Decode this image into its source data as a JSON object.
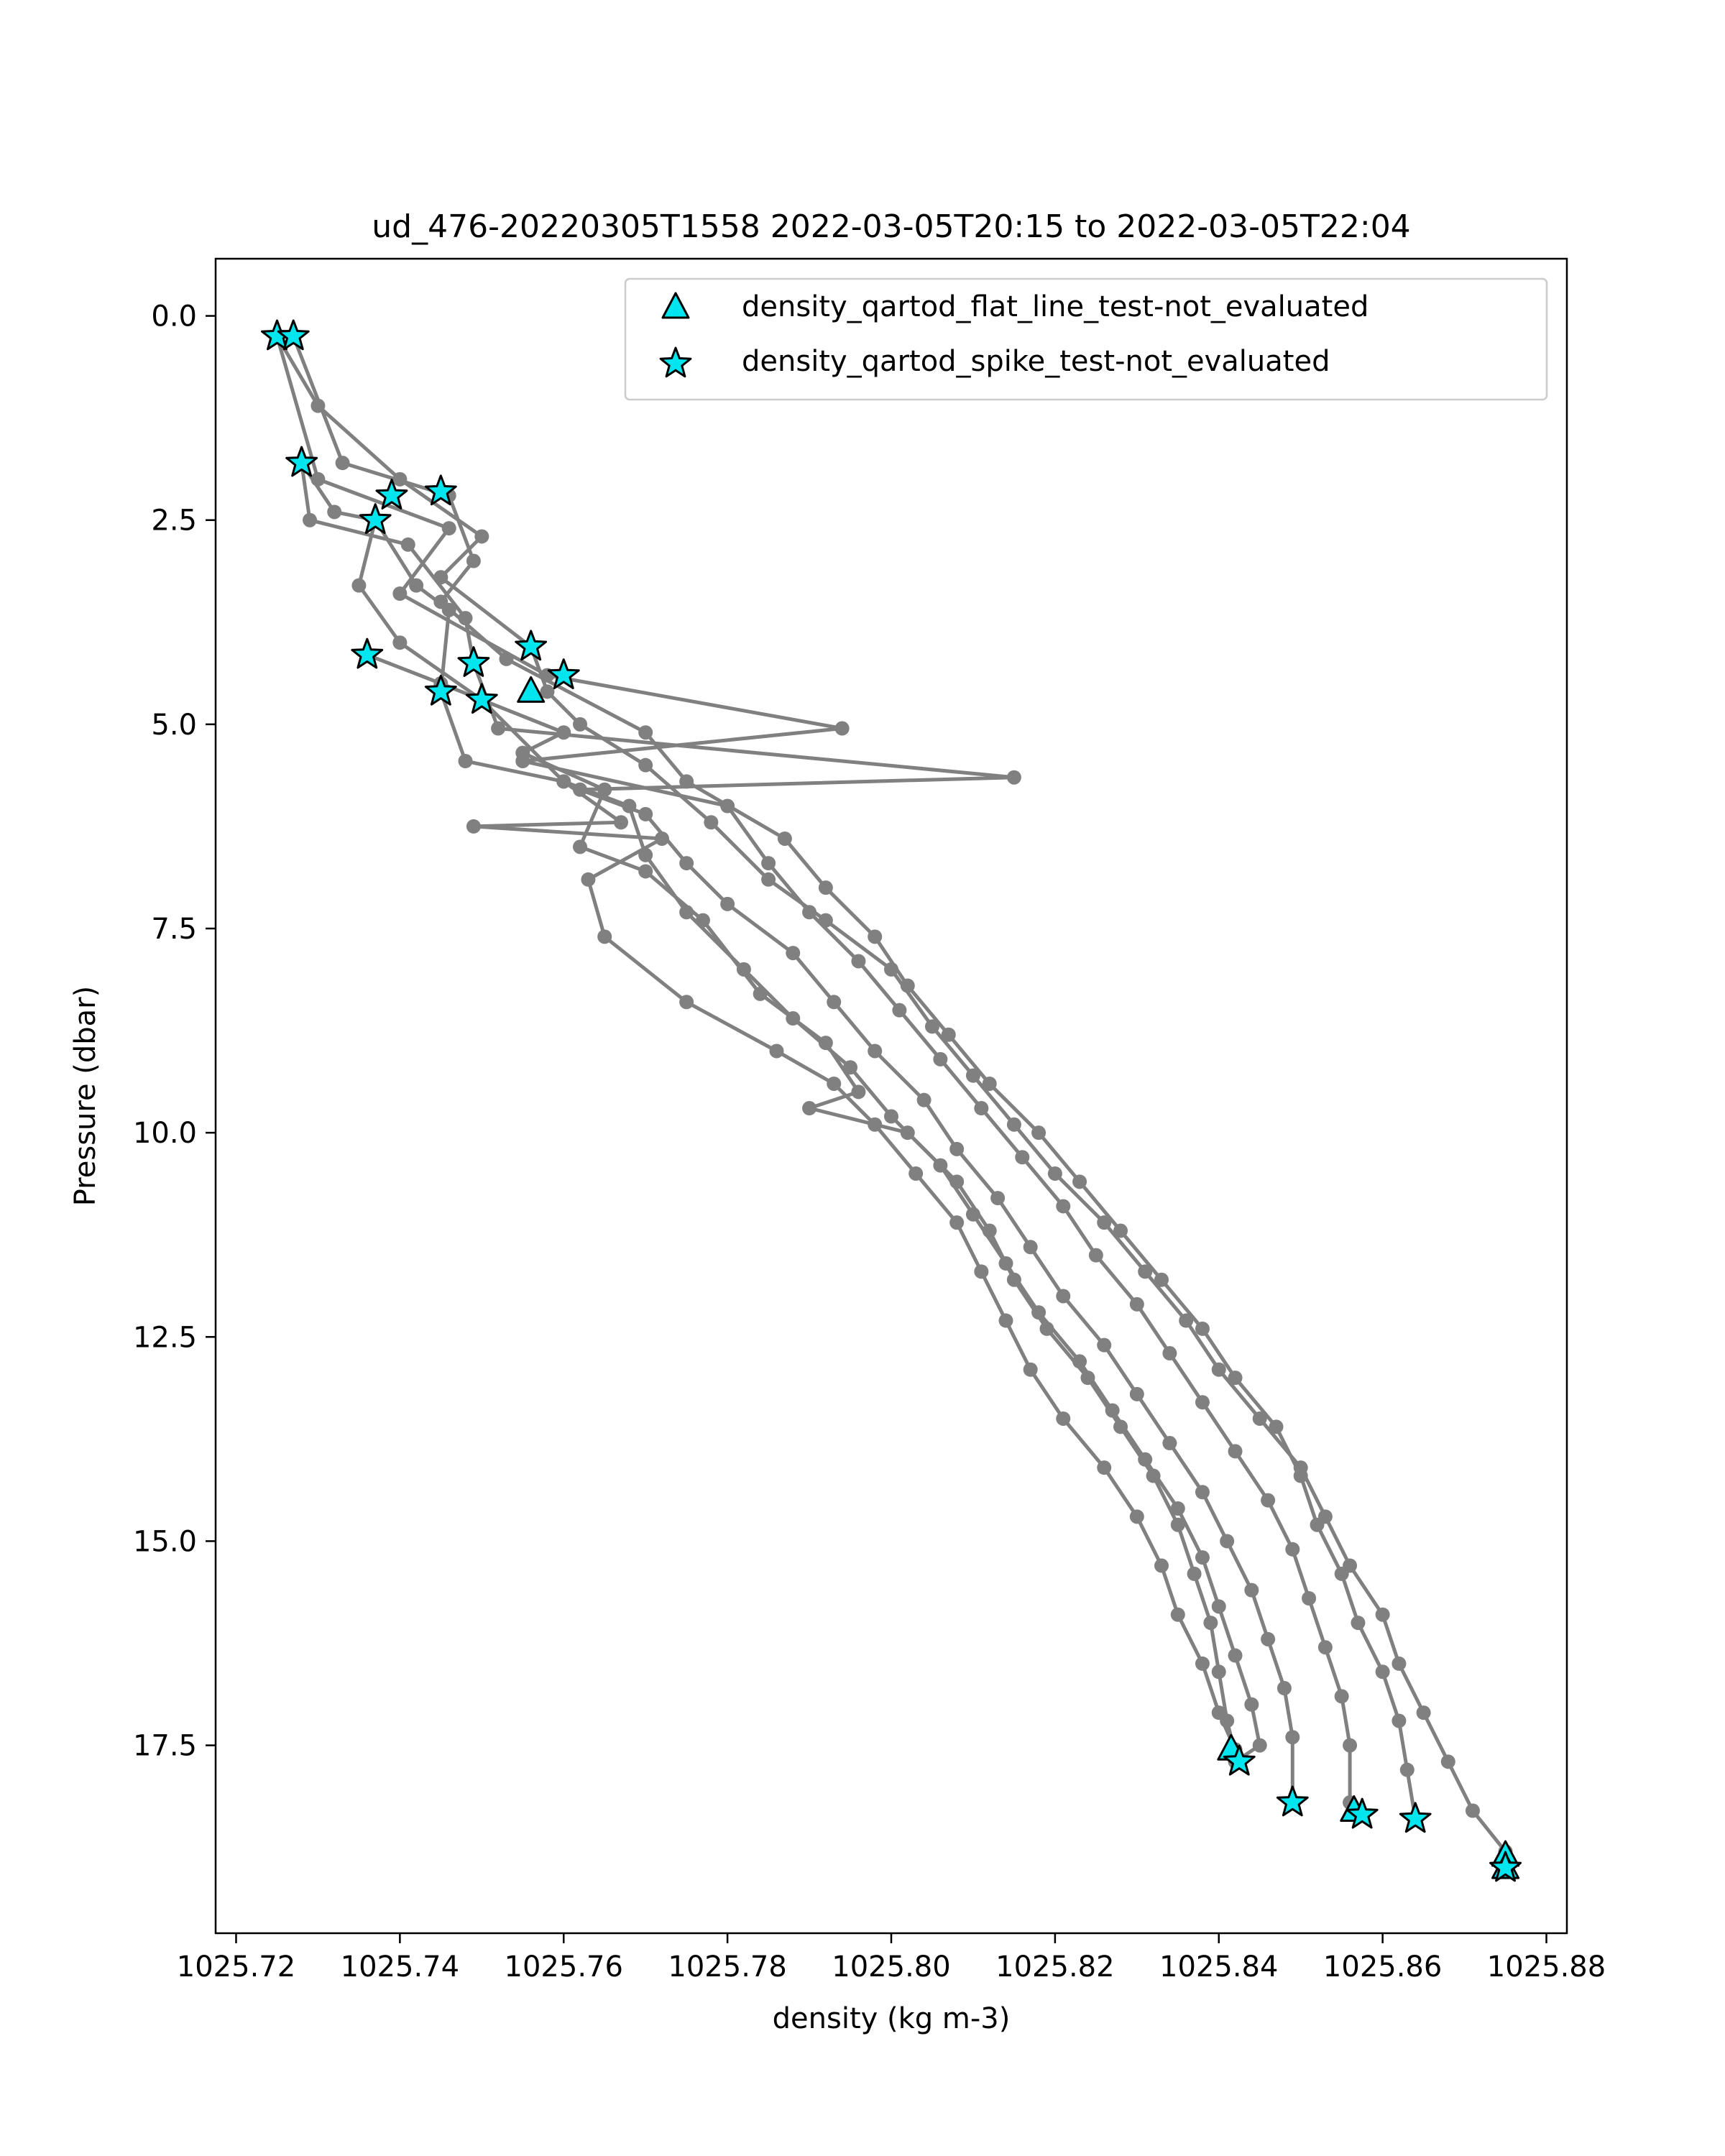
{
  "chart_data": {
    "type": "scatter",
    "title": "ud_476-20220305T1558 2022-03-05T20:15 to 2022-03-05T22:04",
    "xlabel": "density (kg m-3)",
    "ylabel": "Pressure (dbar)",
    "xlim": [
      1025.7175,
      1025.8825
    ],
    "ylim": [
      19.8,
      -0.7
    ],
    "y_inverted": true,
    "grid": false,
    "legend_position": "top-right",
    "xticks": [
      "1025.72",
      "1025.74",
      "1025.76",
      "1025.78",
      "1025.80",
      "1025.82",
      "1025.84",
      "1025.86",
      "1025.88"
    ],
    "xtick_values": [
      1025.72,
      1025.74,
      1025.76,
      1025.78,
      1025.8,
      1025.82,
      1025.84,
      1025.86,
      1025.88
    ],
    "yticks": [
      "0.0",
      "2.5",
      "5.0",
      "7.5",
      "10.0",
      "12.5",
      "15.0",
      "17.5"
    ],
    "ytick_values": [
      0.0,
      2.5,
      5.0,
      7.5,
      10.0,
      12.5,
      15.0,
      17.5
    ],
    "line_color": "#808080",
    "marker_color": "#00e5ee",
    "profiles": [
      {
        "points": [
          [
            1025.725,
            0.25
          ],
          [
            1025.73,
            1.1
          ],
          [
            1025.74,
            2.0
          ],
          [
            1025.75,
            2.7
          ],
          [
            1025.745,
            3.2
          ],
          [
            1025.756,
            4.05
          ],
          [
            1025.758,
            4.6
          ],
          [
            1025.762,
            5.0
          ],
          [
            1025.77,
            5.5
          ],
          [
            1025.778,
            6.2
          ],
          [
            1025.785,
            6.9
          ],
          [
            1025.792,
            7.4
          ],
          [
            1025.8,
            8.0
          ],
          [
            1025.805,
            8.7
          ],
          [
            1025.81,
            9.3
          ],
          [
            1025.815,
            9.9
          ],
          [
            1025.82,
            10.5
          ],
          [
            1025.826,
            11.1
          ],
          [
            1025.831,
            11.7
          ],
          [
            1025.836,
            12.3
          ],
          [
            1025.84,
            12.9
          ],
          [
            1025.845,
            13.5
          ],
          [
            1025.85,
            14.1
          ],
          [
            1025.853,
            14.7
          ],
          [
            1025.856,
            15.3
          ],
          [
            1025.86,
            15.9
          ],
          [
            1025.862,
            16.5
          ],
          [
            1025.865,
            17.1
          ],
          [
            1025.868,
            17.7
          ],
          [
            1025.871,
            18.3
          ],
          [
            1025.875,
            18.8
          ],
          [
            1025.875,
            19.0
          ]
        ]
      },
      {
        "points": [
          [
            1025.727,
            0.25
          ],
          [
            1025.733,
            1.8
          ],
          [
            1025.746,
            2.2
          ],
          [
            1025.749,
            3.0
          ],
          [
            1025.745,
            3.5
          ],
          [
            1025.753,
            4.2
          ],
          [
            1025.77,
            5.1
          ],
          [
            1025.775,
            5.7
          ],
          [
            1025.787,
            6.4
          ],
          [
            1025.792,
            7.0
          ],
          [
            1025.798,
            7.6
          ],
          [
            1025.802,
            8.2
          ],
          [
            1025.807,
            8.8
          ],
          [
            1025.812,
            9.4
          ],
          [
            1025.818,
            10.0
          ],
          [
            1025.823,
            10.6
          ],
          [
            1025.828,
            11.2
          ],
          [
            1025.833,
            11.8
          ],
          [
            1025.838,
            12.4
          ],
          [
            1025.842,
            13.0
          ],
          [
            1025.847,
            13.6
          ],
          [
            1025.85,
            14.2
          ],
          [
            1025.852,
            14.8
          ],
          [
            1025.855,
            15.4
          ],
          [
            1025.857,
            16.0
          ],
          [
            1025.86,
            16.6
          ],
          [
            1025.862,
            17.2
          ],
          [
            1025.863,
            17.8
          ],
          [
            1025.864,
            18.4
          ]
        ]
      },
      {
        "points": [
          [
            1025.725,
            0.25
          ],
          [
            1025.73,
            2.0
          ],
          [
            1025.746,
            2.6
          ],
          [
            1025.74,
            3.4
          ],
          [
            1025.758,
            4.4
          ],
          [
            1025.794,
            5.05
          ],
          [
            1025.755,
            5.45
          ],
          [
            1025.78,
            6.0
          ],
          [
            1025.785,
            6.7
          ],
          [
            1025.79,
            7.3
          ],
          [
            1025.796,
            7.9
          ],
          [
            1025.801,
            8.5
          ],
          [
            1025.806,
            9.1
          ],
          [
            1025.811,
            9.7
          ],
          [
            1025.816,
            10.3
          ],
          [
            1025.821,
            10.9
          ],
          [
            1025.825,
            11.5
          ],
          [
            1025.83,
            12.1
          ],
          [
            1025.834,
            12.7
          ],
          [
            1025.838,
            13.3
          ],
          [
            1025.842,
            13.9
          ],
          [
            1025.846,
            14.5
          ],
          [
            1025.849,
            15.1
          ],
          [
            1025.851,
            15.7
          ],
          [
            1025.853,
            16.3
          ],
          [
            1025.855,
            16.9
          ],
          [
            1025.856,
            17.5
          ],
          [
            1025.856,
            18.2
          ]
        ]
      },
      {
        "points": [
          [
            1025.728,
            1.8
          ],
          [
            1025.729,
            2.5
          ],
          [
            1025.741,
            2.8
          ],
          [
            1025.748,
            3.7
          ],
          [
            1025.749,
            4.25
          ],
          [
            1025.752,
            5.05
          ],
          [
            1025.815,
            5.65
          ],
          [
            1025.762,
            5.8
          ],
          [
            1025.77,
            6.1
          ],
          [
            1025.775,
            6.7
          ],
          [
            1025.78,
            7.2
          ],
          [
            1025.788,
            7.8
          ],
          [
            1025.793,
            8.4
          ],
          [
            1025.798,
            9.0
          ],
          [
            1025.804,
            9.6
          ],
          [
            1025.808,
            10.2
          ],
          [
            1025.813,
            10.8
          ],
          [
            1025.817,
            11.4
          ],
          [
            1025.821,
            12.0
          ],
          [
            1025.826,
            12.6
          ],
          [
            1025.83,
            13.2
          ],
          [
            1025.834,
            13.8
          ],
          [
            1025.838,
            14.4
          ],
          [
            1025.841,
            15.0
          ],
          [
            1025.844,
            15.6
          ],
          [
            1025.846,
            16.2
          ],
          [
            1025.848,
            16.8
          ],
          [
            1025.849,
            17.4
          ],
          [
            1025.849,
            18.2
          ]
        ]
      },
      {
        "points": [
          [
            1025.728,
            1.8
          ],
          [
            1025.732,
            2.4
          ],
          [
            1025.737,
            2.5
          ],
          [
            1025.742,
            3.3
          ],
          [
            1025.746,
            3.6
          ],
          [
            1025.745,
            4.6
          ],
          [
            1025.748,
            5.45
          ],
          [
            1025.76,
            5.7
          ],
          [
            1025.768,
            6.0
          ],
          [
            1025.77,
            6.6
          ],
          [
            1025.775,
            7.3
          ],
          [
            1025.782,
            8.0
          ],
          [
            1025.788,
            8.6
          ],
          [
            1025.795,
            9.2
          ],
          [
            1025.8,
            9.8
          ],
          [
            1025.806,
            10.4
          ],
          [
            1025.81,
            11.0
          ],
          [
            1025.814,
            11.6
          ],
          [
            1025.818,
            12.2
          ],
          [
            1025.823,
            12.8
          ],
          [
            1025.827,
            13.4
          ],
          [
            1025.831,
            14.0
          ],
          [
            1025.835,
            14.6
          ],
          [
            1025.838,
            15.2
          ],
          [
            1025.84,
            15.8
          ],
          [
            1025.842,
            16.4
          ],
          [
            1025.844,
            17.0
          ],
          [
            1025.845,
            17.5
          ],
          [
            1025.842,
            17.7
          ]
        ]
      },
      {
        "points": [
          [
            1025.737,
            2.5
          ],
          [
            1025.735,
            3.3
          ],
          [
            1025.74,
            4.0
          ],
          [
            1025.75,
            4.7
          ],
          [
            1025.76,
            5.1
          ],
          [
            1025.755,
            5.35
          ],
          [
            1025.765,
            5.8
          ],
          [
            1025.762,
            6.5
          ],
          [
            1025.77,
            6.8
          ],
          [
            1025.777,
            7.4
          ],
          [
            1025.784,
            8.3
          ],
          [
            1025.792,
            8.9
          ],
          [
            1025.796,
            9.5
          ],
          [
            1025.79,
            9.7
          ],
          [
            1025.802,
            10.0
          ],
          [
            1025.808,
            10.6
          ],
          [
            1025.812,
            11.2
          ],
          [
            1025.815,
            11.8
          ],
          [
            1025.819,
            12.4
          ],
          [
            1025.824,
            13.0
          ],
          [
            1025.828,
            13.6
          ],
          [
            1025.832,
            14.2
          ],
          [
            1025.835,
            14.8
          ],
          [
            1025.837,
            15.4
          ],
          [
            1025.839,
            16.0
          ],
          [
            1025.84,
            16.6
          ],
          [
            1025.841,
            17.2
          ],
          [
            1025.842,
            17.6
          ]
        ]
      },
      {
        "points": [
          [
            1025.736,
            4.15
          ],
          [
            1025.745,
            4.5
          ],
          [
            1025.75,
            4.7
          ],
          [
            1025.76,
            5.7
          ],
          [
            1025.767,
            6.2
          ],
          [
            1025.749,
            6.25
          ],
          [
            1025.772,
            6.4
          ],
          [
            1025.763,
            6.9
          ],
          [
            1025.765,
            7.6
          ],
          [
            1025.775,
            8.4
          ],
          [
            1025.786,
            9.0
          ],
          [
            1025.793,
            9.4
          ],
          [
            1025.798,
            9.9
          ],
          [
            1025.803,
            10.5
          ],
          [
            1025.808,
            11.1
          ],
          [
            1025.811,
            11.7
          ],
          [
            1025.814,
            12.3
          ],
          [
            1025.817,
            12.9
          ],
          [
            1025.821,
            13.5
          ],
          [
            1025.826,
            14.1
          ],
          [
            1025.83,
            14.7
          ],
          [
            1025.833,
            15.3
          ],
          [
            1025.835,
            15.9
          ],
          [
            1025.838,
            16.5
          ],
          [
            1025.84,
            17.1
          ],
          [
            1025.842,
            17.55
          ]
        ]
      }
    ],
    "series": [
      {
        "name": "density_qartod_flat_line_test-not_evaluated",
        "marker": "triangle",
        "points": [
          [
            1025.756,
            4.6
          ],
          [
            1025.8415,
            17.55
          ],
          [
            1025.8565,
            18.3
          ],
          [
            1025.875,
            18.85
          ],
          [
            1025.875,
            19.0
          ]
        ]
      },
      {
        "name": "density_qartod_spike_test-not_evaluated",
        "marker": "star",
        "points": [
          [
            1025.725,
            0.25
          ],
          [
            1025.727,
            0.25
          ],
          [
            1025.728,
            1.8
          ],
          [
            1025.739,
            2.2
          ],
          [
            1025.745,
            2.15
          ],
          [
            1025.737,
            2.5
          ],
          [
            1025.756,
            4.05
          ],
          [
            1025.76,
            4.4
          ],
          [
            1025.749,
            4.25
          ],
          [
            1025.736,
            4.15
          ],
          [
            1025.745,
            4.6
          ],
          [
            1025.75,
            4.7
          ],
          [
            1025.8425,
            17.7
          ],
          [
            1025.849,
            18.2
          ],
          [
            1025.8575,
            18.35
          ],
          [
            1025.864,
            18.4
          ],
          [
            1025.875,
            19.0
          ]
        ]
      }
    ]
  }
}
